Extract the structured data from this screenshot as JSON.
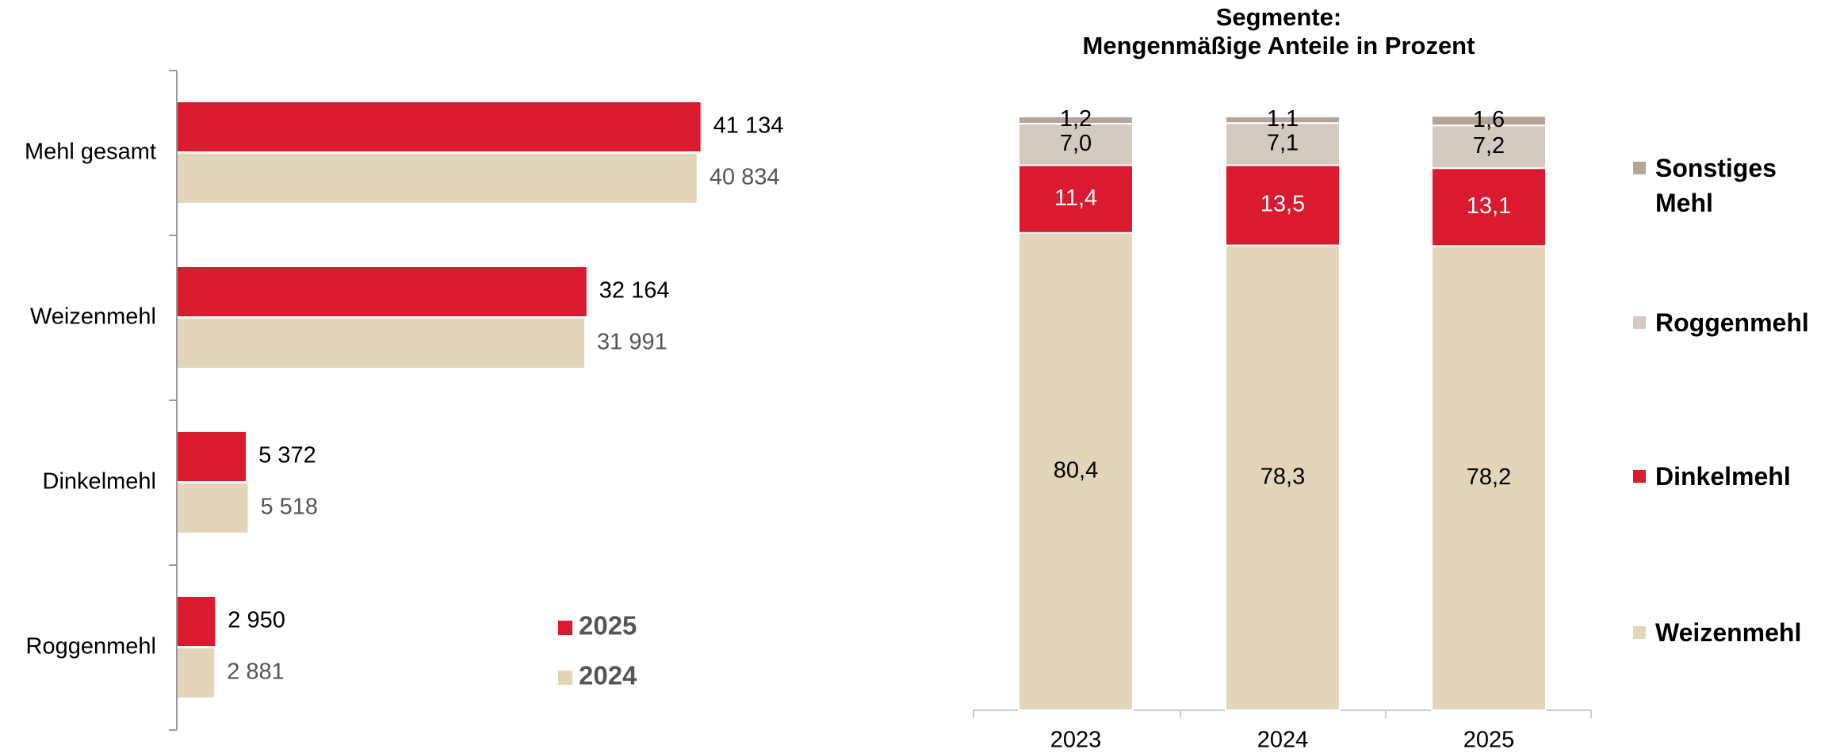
{
  "chart_data": [
    {
      "type": "hbar",
      "categories": [
        "Mehl gesamt",
        "Weizenmehl",
        "Dinkelmehl",
        "Roggenmehl"
      ],
      "xlim": [
        0,
        55000
      ],
      "series": [
        {
          "name": "2025",
          "color": "#dc1a2f",
          "values": [
            41134,
            32164,
            5372,
            2950
          ],
          "value_labels": [
            "41 134",
            "32 164",
            "5 372",
            "2 950"
          ]
        },
        {
          "name": "2024",
          "color": "#e3d5b9",
          "values": [
            40834,
            31991,
            5518,
            2881
          ],
          "value_labels": [
            "40 834",
            "31 991",
            "5 518",
            "2 881"
          ]
        }
      ]
    },
    {
      "type": "stacked_bar",
      "title": "Segmente:",
      "subtitle": "Mengenmäßige Anteile in Prozent",
      "categories": [
        "2023",
        "2024",
        "2025"
      ],
      "ylim": [
        0,
        100
      ],
      "series": [
        {
          "name": "Weizenmehl",
          "color": "#e3d5b9",
          "values": [
            80.4,
            78.3,
            78.2
          ],
          "value_labels": [
            "80,4",
            "78,3",
            "78,2"
          ]
        },
        {
          "name": "Dinkelmehl",
          "color": "#dc1a2f",
          "values": [
            11.4,
            13.5,
            13.1
          ],
          "value_labels": [
            "11,4",
            "13,5",
            "13,1"
          ]
        },
        {
          "name": "Roggenmehl",
          "color": "#d4cbc0",
          "values": [
            7.0,
            7.1,
            7.2
          ],
          "value_labels": [
            "7,0",
            "7,1",
            "7,2"
          ]
        },
        {
          "name": "Sonstiges Mehl",
          "color": "#b5a597",
          "values": [
            1.2,
            1.1,
            1.6
          ],
          "value_labels": [
            "1,2",
            "1,1",
            "1,6"
          ]
        }
      ]
    }
  ]
}
